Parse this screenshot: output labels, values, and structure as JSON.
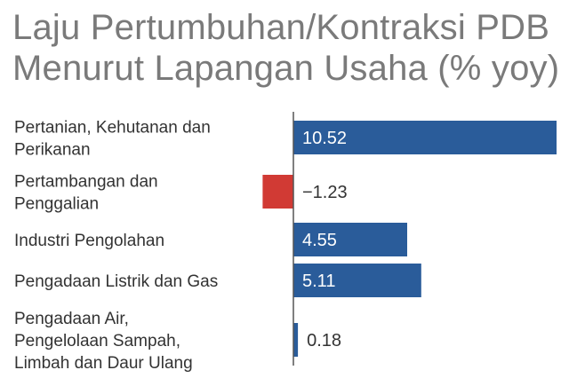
{
  "chart_data": {
    "type": "bar",
    "orientation": "horizontal",
    "title_lines": [
      "Laju Pertumbuhan/Kontraksi PDB",
      "Menurut Lapangan Usaha (% yoy)"
    ],
    "categories": [
      [
        "Pertanian, Kehutanan dan",
        "Perikanan"
      ],
      [
        "Pertambangan dan",
        "Penggalian"
      ],
      [
        "Industri Pengolahan"
      ],
      [
        "Pengadaan Listrik dan Gas"
      ],
      [
        "Pengadaan Air,",
        "Pengelolaan Sampah,",
        "Limbah dan Daur Ulang"
      ]
    ],
    "values": [
      10.52,
      -1.23,
      4.55,
      5.11,
      0.18
    ],
    "value_labels": [
      "10.52",
      "−1.23",
      "4.55",
      "5.11",
      "0.18"
    ],
    "colors": {
      "positive": "#2a5c9a",
      "negative": "#d13a34",
      "axis": "#555555",
      "category_text": "#333333",
      "label_inside": "#ffffff",
      "label_outside": "#333333"
    },
    "xlim": [
      -1.23,
      10.52
    ],
    "grid": false,
    "legend": "none"
  }
}
